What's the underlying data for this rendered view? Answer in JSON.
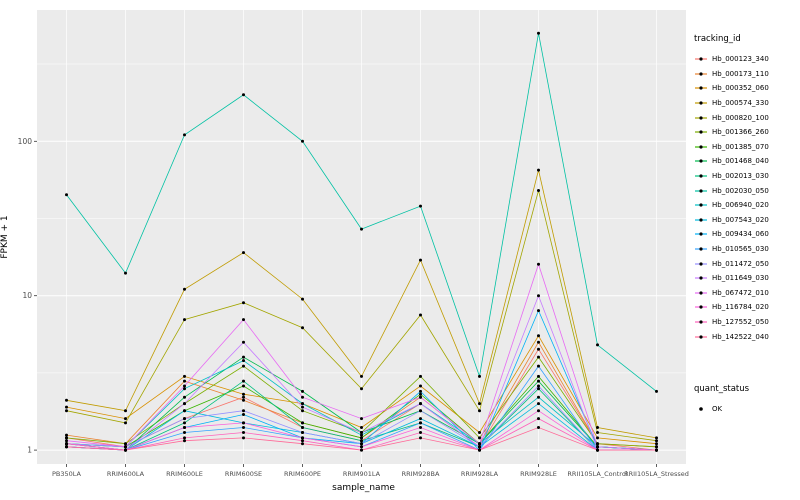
{
  "chart_data": {
    "type": "line",
    "title": "",
    "xlabel": "sample_name",
    "ylabel": "FPKM + 1",
    "y_scale": "log10",
    "y_ticks": [
      1,
      10,
      100
    ],
    "grid": true,
    "panel_bg": "#EBEBEB",
    "grid_color": "#FFFFFF",
    "point_color": "#000000",
    "legend_position": "right",
    "categories": [
      "PB350LA",
      "RRIM600LA",
      "RRIM600LE",
      "RRIM600SE",
      "RRIM600PE",
      "RRIM901LA",
      "RRIM928BA",
      "RRIM928LA",
      "RRIM928LE",
      "RRII105LA_Control",
      "RRII105LA_Stressed"
    ],
    "color_legend_title": "tracking_id",
    "shape_legend_title": "quant_status",
    "shape_legend_items": [
      {
        "label": "OK"
      }
    ],
    "series": [
      {
        "name": "Hb_000123_340",
        "color": "#F8766D",
        "values": [
          1.2,
          1.05,
          1.6,
          2.2,
          1.4,
          1.15,
          2.0,
          1.05,
          4.5,
          1.1,
          1.0
        ]
      },
      {
        "name": "Hb_000173_110",
        "color": "#EA8331",
        "values": [
          1.25,
          1.1,
          2.8,
          2.1,
          1.5,
          1.2,
          2.2,
          1.1,
          5.0,
          1.1,
          1.05
        ]
      },
      {
        "name": "Hb_000352_060",
        "color": "#D89000",
        "values": [
          1.9,
          1.6,
          3.0,
          2.3,
          2.0,
          1.4,
          2.6,
          1.3,
          5.5,
          1.2,
          1.1
        ]
      },
      {
        "name": "Hb_000574_330",
        "color": "#C09B00",
        "values": [
          2.1,
          1.8,
          11,
          19,
          9.5,
          3.0,
          17,
          2.0,
          65,
          1.4,
          1.2
        ]
      },
      {
        "name": "Hb_000820_100",
        "color": "#A3A500",
        "values": [
          1.8,
          1.5,
          7,
          9,
          6.2,
          2.5,
          7.5,
          1.8,
          48,
          1.3,
          1.15
        ]
      },
      {
        "name": "Hb_001366_260",
        "color": "#7CAE00",
        "values": [
          1.2,
          1.1,
          2.0,
          3.5,
          1.8,
          1.3,
          3.0,
          1.2,
          4.0,
          1.1,
          1.05
        ]
      },
      {
        "name": "Hb_001385_070",
        "color": "#39B600",
        "values": [
          1.1,
          1.05,
          1.8,
          2.6,
          1.5,
          1.2,
          2.3,
          1.1,
          3.0,
          1.05,
          1.0
        ]
      },
      {
        "name": "Hb_001468_040",
        "color": "#00BB4E",
        "values": [
          1.1,
          1.0,
          2.2,
          4.0,
          2.4,
          1.3,
          1.8,
          1.1,
          2.8,
          1.05,
          1.0
        ]
      },
      {
        "name": "Hb_002013_030",
        "color": "#00BF7D",
        "values": [
          1.05,
          1.0,
          1.5,
          2.8,
          1.4,
          1.15,
          1.5,
          1.05,
          2.5,
          1.0,
          1.0
        ]
      },
      {
        "name": "Hb_002030_050",
        "color": "#00C1A3",
        "values": [
          45,
          14,
          110,
          200,
          100,
          27,
          38,
          3.0,
          500,
          4.8,
          2.4
        ]
      },
      {
        "name": "Hb_006940_020",
        "color": "#00BFC4",
        "values": [
          1.1,
          1.05,
          2.5,
          3.8,
          2.0,
          1.25,
          2.0,
          1.1,
          2.2,
          1.05,
          1.0
        ]
      },
      {
        "name": "Hb_007543_020",
        "color": "#00BAE0",
        "values": [
          1.05,
          1.0,
          1.8,
          1.5,
          1.3,
          1.1,
          1.6,
          1.05,
          2.0,
          1.0,
          1.0
        ]
      },
      {
        "name": "Hb_009434_060",
        "color": "#00B0F6",
        "values": [
          1.1,
          1.0,
          1.4,
          1.7,
          1.2,
          1.1,
          2.4,
          1.0,
          8.0,
          1.05,
          1.0
        ]
      },
      {
        "name": "Hb_010565_030",
        "color": "#35A2FF",
        "values": [
          1.05,
          1.0,
          1.3,
          1.4,
          1.2,
          1.05,
          1.5,
          1.0,
          3.5,
          1.0,
          1.0
        ]
      },
      {
        "name": "Hb_011472_050",
        "color": "#9590FF",
        "values": [
          1.1,
          1.05,
          1.6,
          1.8,
          1.3,
          1.1,
          1.8,
          1.05,
          2.6,
          1.0,
          1.0
        ]
      },
      {
        "name": "Hb_011649_030",
        "color": "#C77CFF",
        "values": [
          1.1,
          1.0,
          2.0,
          5.0,
          1.9,
          1.3,
          2.0,
          1.05,
          10,
          1.0,
          1.0
        ]
      },
      {
        "name": "Hb_067472_010",
        "color": "#E76BF3",
        "values": [
          1.15,
          1.05,
          2.6,
          7.0,
          2.2,
          1.6,
          2.2,
          1.1,
          16,
          1.05,
          1.0
        ]
      },
      {
        "name": "Hb_116784_020",
        "color": "#FA62DB",
        "values": [
          1.05,
          1.0,
          1.4,
          1.5,
          1.2,
          1.05,
          1.4,
          1.0,
          1.8,
          1.0,
          1.0
        ]
      },
      {
        "name": "Hb_127552_050",
        "color": "#FF62BC",
        "values": [
          1.1,
          1.0,
          1.2,
          1.3,
          1.15,
          1.0,
          1.3,
          1.0,
          1.6,
          1.0,
          1.0
        ]
      },
      {
        "name": "Hb_142522_040",
        "color": "#FF6A98",
        "values": [
          1.05,
          1.0,
          1.15,
          1.2,
          1.1,
          1.0,
          1.2,
          1.0,
          1.4,
          1.0,
          1.0
        ]
      }
    ]
  }
}
